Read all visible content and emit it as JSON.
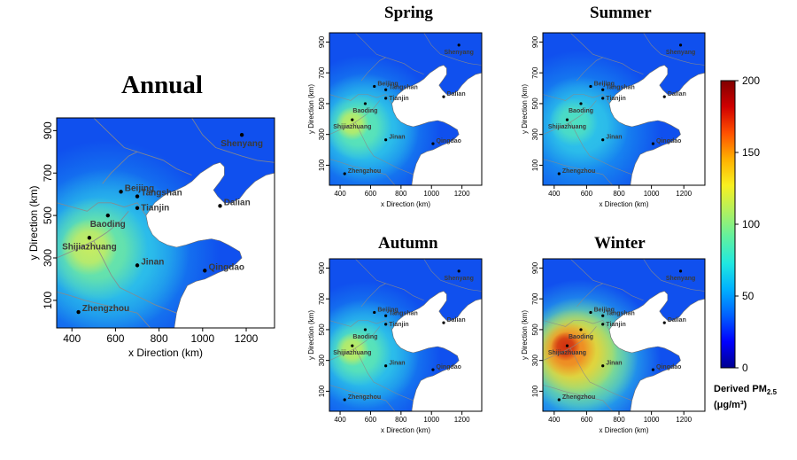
{
  "figure": {
    "panels": [
      {
        "id": "annual",
        "title": "Annual",
        "scheme": "annual"
      },
      {
        "id": "spring",
        "title": "Spring",
        "scheme": "spring"
      },
      {
        "id": "summer",
        "title": "Summer",
        "scheme": "summer"
      },
      {
        "id": "autumn",
        "title": "Autumn",
        "scheme": "autumn"
      },
      {
        "id": "winter",
        "title": "Winter",
        "scheme": "winter"
      }
    ],
    "x_axis": {
      "label": "x Direction (km)",
      "ticks": [
        400,
        600,
        800,
        1000,
        1200
      ],
      "range": [
        330,
        1330
      ]
    },
    "y_axis": {
      "label": "y Direction (km)",
      "ticks": [
        100,
        300,
        500,
        700,
        900
      ],
      "range": [
        -30,
        960
      ]
    },
    "small_y_label": "y Direction (km)",
    "cities": [
      {
        "name": "Beijing",
        "x": 625,
        "y": 612
      },
      {
        "name": "Tangshan",
        "x": 700,
        "y": 590
      },
      {
        "name": "Tianjin",
        "x": 700,
        "y": 535
      },
      {
        "name": "Baoding",
        "x": 565,
        "y": 500
      },
      {
        "name": "Shijiazhuang",
        "x": 480,
        "y": 395
      },
      {
        "name": "Jinan",
        "x": 700,
        "y": 265
      },
      {
        "name": "Qingdao",
        "x": 1010,
        "y": 240
      },
      {
        "name": "Dalian",
        "x": 1080,
        "y": 545
      },
      {
        "name": "Shenyang",
        "x": 1180,
        "y": 880
      },
      {
        "name": "Zhengzhou",
        "x": 430,
        "y": 45
      }
    ],
    "colorbar": {
      "ticks": [
        0,
        50,
        100,
        150,
        200
      ],
      "min": 0,
      "max": 200,
      "label_line1": "Derived PM",
      "label_sub": "2.5",
      "label_line2": "(μg/m³)",
      "colors": [
        "#000090",
        "#0000ff",
        "#0060ff",
        "#00b0ff",
        "#20e8e0",
        "#60f0a0",
        "#b0f060",
        "#f8f020",
        "#ffb000",
        "#ff5000",
        "#d00000",
        "#800000"
      ]
    },
    "palette": {
      "sea": "#ffffff",
      "border": "#8a8a8a",
      "land_annual": [
        "#1050ee",
        "#1890f0",
        "#30c8e8",
        "#50e0c0",
        "#90ec80",
        "#d0ec58"
      ],
      "land_winter": [
        "#1050ee",
        "#1890f0",
        "#40d8d0",
        "#a0e870",
        "#f0d030",
        "#f08020",
        "#d03010"
      ]
    }
  }
}
